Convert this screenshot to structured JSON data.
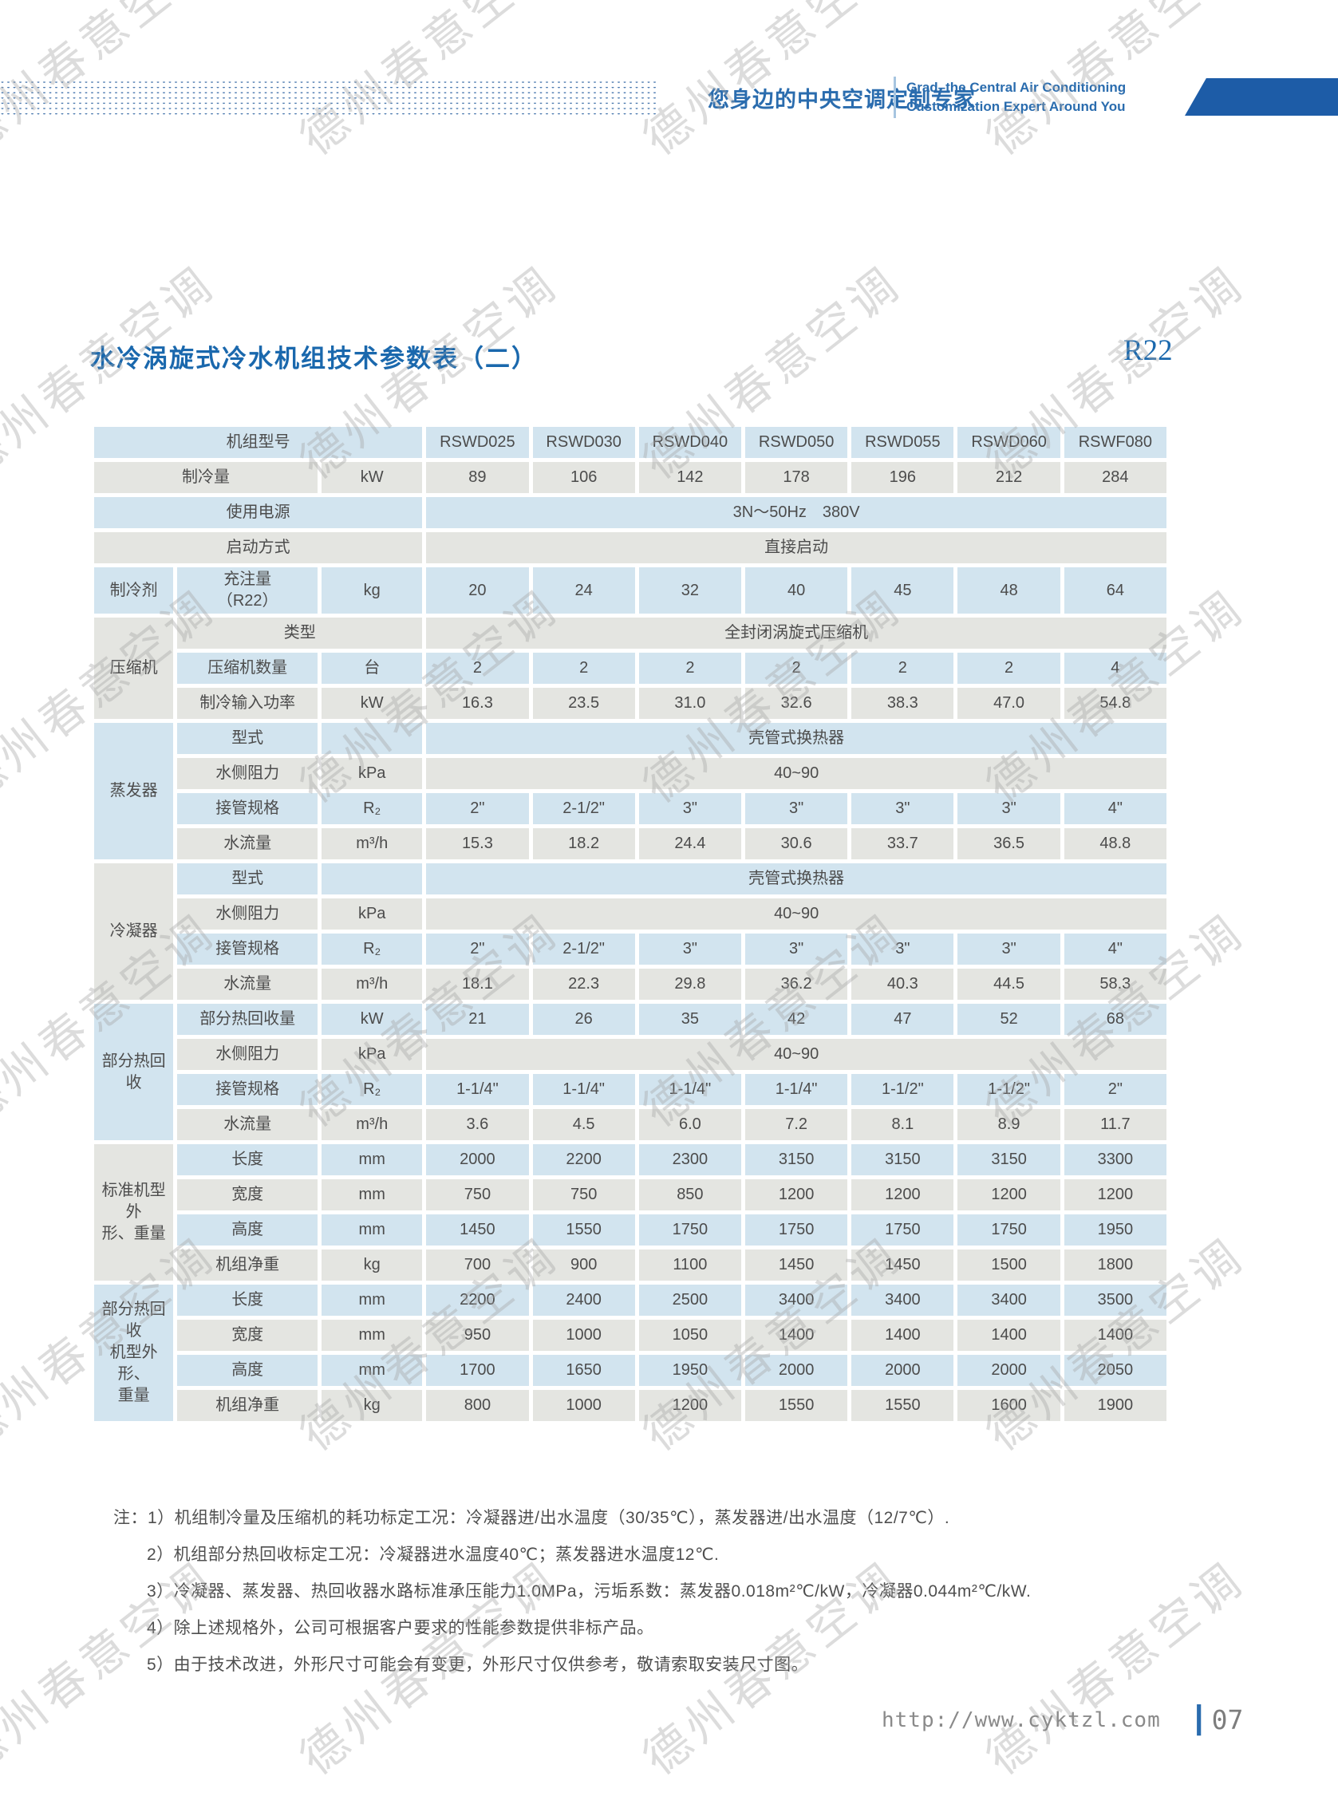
{
  "header": {
    "tagline_zh": "您身边的中央空调定制专家",
    "tagline_en_line1": "Grad–the Central Air Conditioning",
    "tagline_en_line2": "Customization Expert Around You"
  },
  "title": {
    "text": "水冷涡旋式冷水机组技术参数表（二）",
    "refrigerant": "R22"
  },
  "colors": {
    "row_blue": "#d2e4ef",
    "row_gray": "#e4e5e1",
    "accent_blue": "#1a68ad",
    "ribbon_blue": "#1d5ca7"
  },
  "table": {
    "unit_model_label": "机组型号",
    "models": [
      "RSWD025",
      "RSWD030",
      "RSWD040",
      "RSWD050",
      "RSWD055",
      "RSWD060",
      "RSWF080"
    ],
    "rows": [
      {
        "l": "机组型号",
        "ls": 3,
        "shade": "blue",
        "modelsRow": true
      },
      {
        "l": "制冷量",
        "ls": 2,
        "u": "kW",
        "shade": "gray",
        "v": [
          "89",
          "106",
          "142",
          "178",
          "196",
          "212",
          "284"
        ]
      },
      {
        "l": "使用电源",
        "ls": 3,
        "shade": "blue",
        "s": "3N～50Hz　380V"
      },
      {
        "l": "启动方式",
        "ls": 3,
        "shade": "gray",
        "s": "直接启动"
      },
      {
        "g": "制冷剂",
        "gr": 1,
        "gshade": "blue",
        "l": "充注量\n（R22）",
        "u": "kg",
        "shade": "blue",
        "tall": true,
        "v": [
          "20",
          "24",
          "32",
          "40",
          "45",
          "48",
          "64"
        ]
      },
      {
        "g": "压缩机",
        "gr": 3,
        "gshade": "gray",
        "l": "类型",
        "ls": "bc",
        "shade": "gray",
        "s": "全封闭涡旋式压缩机"
      },
      {
        "l": "压缩机数量",
        "u": "台",
        "shade": "blue",
        "v": [
          "2",
          "2",
          "2",
          "2",
          "2",
          "2",
          "4"
        ]
      },
      {
        "l": "制冷输入功率",
        "u": "kW",
        "shade": "gray",
        "v": [
          "16.3",
          "23.5",
          "31.0",
          "32.6",
          "38.3",
          "47.0",
          "54.8"
        ]
      },
      {
        "g": "蒸发器",
        "gr": 4,
        "gshade": "blue",
        "l": "型式",
        "u": "",
        "shade": "blue",
        "s": "壳管式换热器"
      },
      {
        "l": "水侧阻力",
        "u": "kPa",
        "shade": "gray",
        "s": "40~90"
      },
      {
        "l": "接管规格",
        "u": "R₂",
        "shade": "blue",
        "v": [
          "2\"",
          "2-1/2\"",
          "3\"",
          "3\"",
          "3\"",
          "3\"",
          "4\""
        ]
      },
      {
        "l": "水流量",
        "u": "m³/h",
        "shade": "gray",
        "v": [
          "15.3",
          "18.2",
          "24.4",
          "30.6",
          "33.7",
          "36.5",
          "48.8"
        ]
      },
      {
        "g": "冷凝器",
        "gr": 4,
        "gshade": "gray",
        "l": "型式",
        "u": "",
        "shade": "blue",
        "s": "壳管式换热器"
      },
      {
        "l": "水侧阻力",
        "u": "kPa",
        "shade": "gray",
        "s": "40~90"
      },
      {
        "l": "接管规格",
        "u": "R₂",
        "shade": "blue",
        "v": [
          "2\"",
          "2-1/2\"",
          "3\"",
          "3\"",
          "3\"",
          "3\"",
          "4\""
        ]
      },
      {
        "l": "水流量",
        "u": "m³/h",
        "shade": "gray",
        "v": [
          "18.1",
          "22.3",
          "29.8",
          "36.2",
          "40.3",
          "44.5",
          "58.3"
        ]
      },
      {
        "g": "部分热回收",
        "gr": 4,
        "gshade": "blue",
        "l": "部分热回收量",
        "u": "kW",
        "shade": "blue",
        "v": [
          "21",
          "26",
          "35",
          "42",
          "47",
          "52",
          "68"
        ]
      },
      {
        "l": "水侧阻力",
        "u": "kPa",
        "shade": "gray",
        "s": "40~90"
      },
      {
        "l": "接管规格",
        "u": "R₂",
        "shade": "blue",
        "v": [
          "1-1/4\"",
          "1-1/4\"",
          "1-1/4\"",
          "1-1/4\"",
          "1-1/2\"",
          "1-1/2\"",
          "2\""
        ]
      },
      {
        "l": "水流量",
        "u": "m³/h",
        "shade": "gray",
        "v": [
          "3.6",
          "4.5",
          "6.0",
          "7.2",
          "8.1",
          "8.9",
          "11.7"
        ]
      },
      {
        "g": "标准机型外\n形、重量",
        "gr": 4,
        "gshade": "gray",
        "l": "长度",
        "u": "mm",
        "shade": "blue",
        "v": [
          "2000",
          "2200",
          "2300",
          "3150",
          "3150",
          "3150",
          "3300"
        ]
      },
      {
        "l": "宽度",
        "u": "mm",
        "shade": "gray",
        "v": [
          "750",
          "750",
          "850",
          "1200",
          "1200",
          "1200",
          "1200"
        ]
      },
      {
        "l": "高度",
        "u": "mm",
        "shade": "blue",
        "v": [
          "1450",
          "1550",
          "1750",
          "1750",
          "1750",
          "1750",
          "1950"
        ]
      },
      {
        "l": "机组净重",
        "u": "kg",
        "shade": "gray",
        "v": [
          "700",
          "900",
          "1100",
          "1450",
          "1450",
          "1500",
          "1800"
        ]
      },
      {
        "g": "部分热回收\n机型外形、\n重量",
        "gr": 4,
        "gshade": "blue",
        "l": "长度",
        "u": "mm",
        "shade": "blue",
        "v": [
          "2200",
          "2400",
          "2500",
          "3400",
          "3400",
          "3400",
          "3500"
        ]
      },
      {
        "l": "宽度",
        "u": "mm",
        "shade": "gray",
        "v": [
          "950",
          "1000",
          "1050",
          "1400",
          "1400",
          "1400",
          "1400"
        ]
      },
      {
        "l": "高度",
        "u": "mm",
        "shade": "blue",
        "v": [
          "1700",
          "1650",
          "1950",
          "2000",
          "2000",
          "2000",
          "2050"
        ]
      },
      {
        "l": "机组净重",
        "u": "kg",
        "shade": "gray",
        "v": [
          "800",
          "1000",
          "1200",
          "1550",
          "1550",
          "1600",
          "1900"
        ]
      }
    ]
  },
  "notes": {
    "prefix": "注：",
    "items": [
      "1）机组制冷量及压缩机的耗功标定工况：冷凝器进/出水温度（30/35℃），蒸发器进/出水温度（12/7℃）.",
      "2）机组部分热回收标定工况：冷凝器进水温度40℃；蒸发器进水温度12℃.",
      "3）冷凝器、蒸发器、热回收器水路标准承压能力1.0MPa，污垢系数：蒸发器0.018m²℃/kW，冷凝器0.044m²℃/kW.",
      "4）除上述规格外，公司可根据客户要求的性能参数提供非标产品。",
      "5）由于技术改进，外形尺寸可能会有变更，外形尺寸仅供参考，敬请索取安装尺寸图。"
    ]
  },
  "footer": {
    "url": "http://www.cyktzl.com",
    "separator": "┃",
    "page": "07"
  },
  "watermark": {
    "text": "德州春意空调"
  }
}
